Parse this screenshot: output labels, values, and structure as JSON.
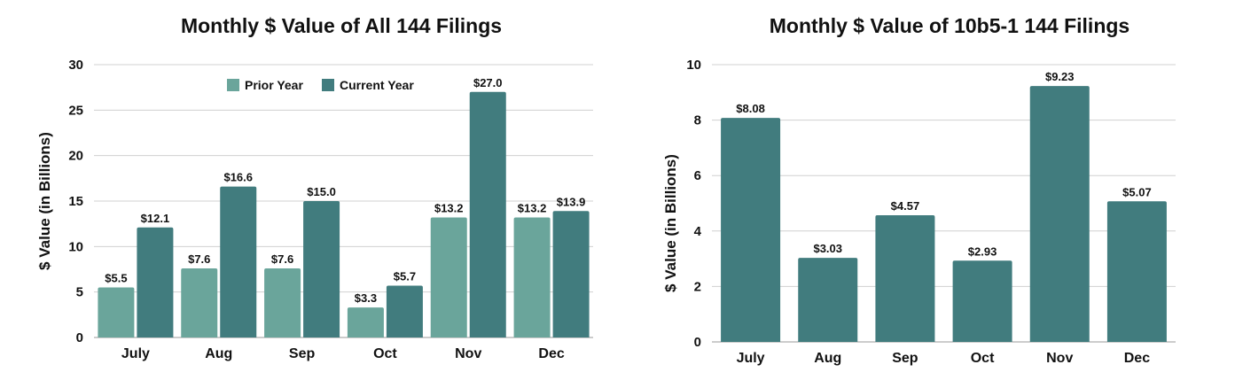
{
  "chart_data": [
    {
      "type": "bar",
      "title": "Monthly $ Value of All 144 Filings",
      "ylabel": "$ Value (in Billions)",
      "xlabel": "",
      "ylim": [
        0,
        30
      ],
      "yticks": [
        0,
        5,
        10,
        15,
        20,
        25,
        30
      ],
      "grid": true,
      "legend_position": "top-center",
      "categories": [
        "July",
        "Aug",
        "Sep",
        "Oct",
        "Nov",
        "Dec"
      ],
      "series": [
        {
          "name": "Prior Year",
          "color": "#6aa59b",
          "values": [
            5.5,
            7.6,
            7.6,
            3.3,
            13.2,
            13.2
          ],
          "labels": [
            "$5.5",
            "$7.6",
            "$7.6",
            "$3.3",
            "$13.2",
            "$13.2"
          ]
        },
        {
          "name": "Current Year",
          "color": "#417c7e",
          "values": [
            12.1,
            16.6,
            15.0,
            5.7,
            27.0,
            13.9
          ],
          "labels": [
            "$12.1",
            "$16.6",
            "$15.0",
            "$5.7",
            "$27.0",
            "$13.9"
          ]
        }
      ]
    },
    {
      "type": "bar",
      "title": "Monthly $ Value of 10b5-1 144 Filings",
      "ylabel": "$ Value (in Billions)",
      "xlabel": "",
      "ylim": [
        0,
        10
      ],
      "yticks": [
        0,
        2,
        4,
        6,
        8,
        10
      ],
      "grid": true,
      "categories": [
        "July",
        "Aug",
        "Sep",
        "Oct",
        "Nov",
        "Dec"
      ],
      "series": [
        {
          "color": "#417c7e",
          "values": [
            8.08,
            3.03,
            4.57,
            2.93,
            9.23,
            5.07
          ],
          "labels": [
            "$8.08",
            "$3.03",
            "$4.57",
            "$2.93",
            "$9.23",
            "$5.07"
          ]
        }
      ]
    }
  ]
}
